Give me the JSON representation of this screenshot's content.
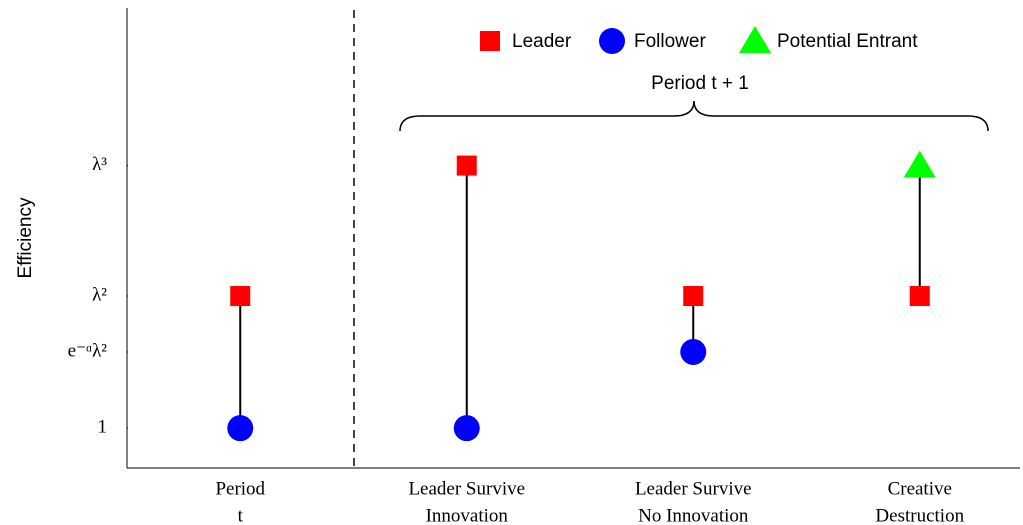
{
  "chart_data": {
    "type": "dot-stem",
    "y_label": "Efficiency",
    "annotation": "Period t + 1",
    "categories": [
      [
        "Period",
        "t"
      ],
      [
        "Leader Survive",
        "Innovation"
      ],
      [
        "Leader Survive",
        "No Innovation"
      ],
      [
        "Creative",
        "Destruction"
      ]
    ],
    "series": [
      {
        "name": "Leader",
        "color": "#ff0000",
        "marker": "square",
        "values": [
          2.56,
          4.1,
          2.56,
          2.56
        ]
      },
      {
        "name": "Follower",
        "color": "#0000ff",
        "marker": "circle",
        "values": [
          1,
          1,
          1.9,
          null
        ]
      },
      {
        "name": "Potential Entrant",
        "color": "#00ff00",
        "marker": "triangle",
        "values": [
          null,
          null,
          null,
          4.1
        ]
      }
    ],
    "ylim": [
      0.53,
      5.96
    ],
    "yticks": [
      {
        "value": 1,
        "label": "1"
      },
      {
        "value": 1.9,
        "label": "e⁻ᵅλ²"
      },
      {
        "value": 2.56,
        "label": "λ²"
      },
      {
        "value": 4.1,
        "label": "λ³"
      }
    ],
    "grid": false
  }
}
